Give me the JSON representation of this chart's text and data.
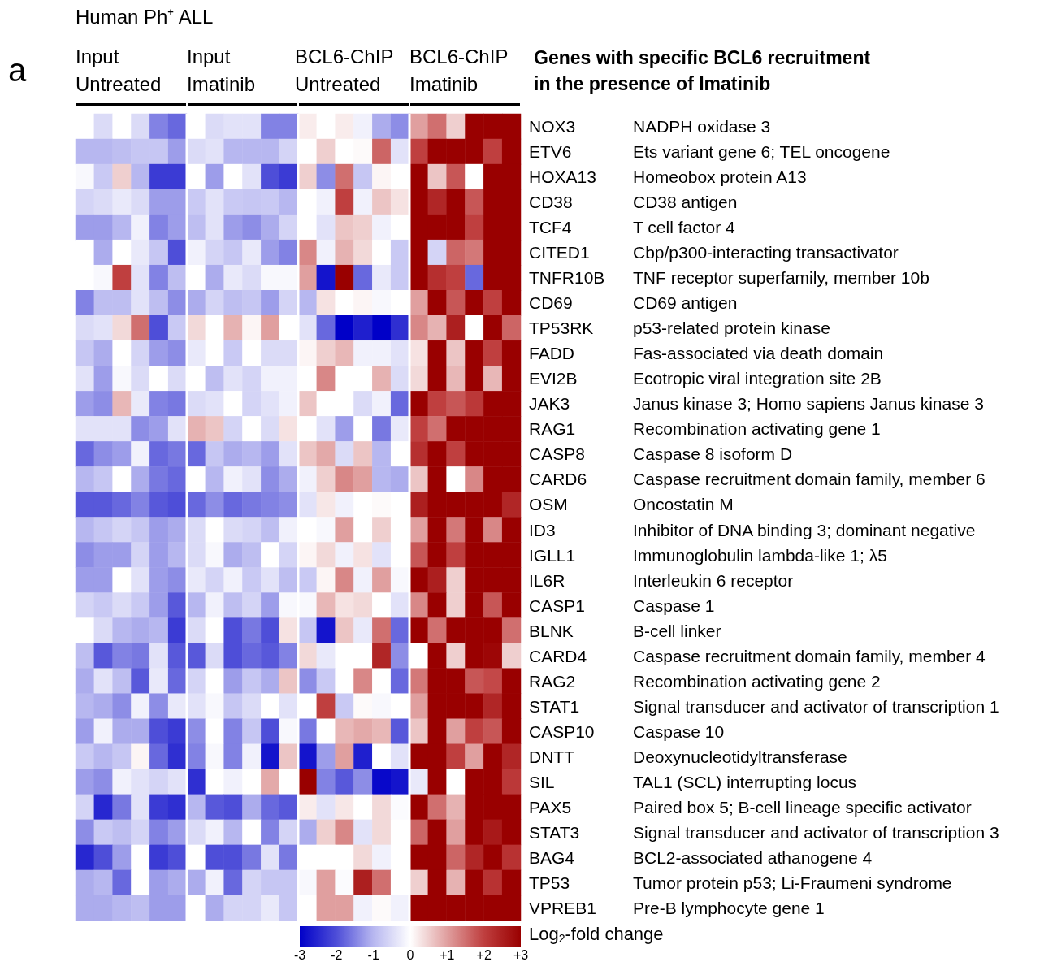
{
  "chart_data": {
    "type": "heatmap",
    "ylabel": "Genes with specific BCL6 recruitment in the presence of Imatinib",
    "annotations": [
      "a",
      "Human Ph⁺ ALL",
      "Input Untreated",
      "Input Imatinib",
      "BCL6-ChIP Untreated",
      "BCL6-ChIP Imatinib"
    ],
    "categories": [
      null,
      null,
      null,
      null,
      null,
      null,
      null,
      null,
      null,
      null,
      null,
      null,
      null,
      null,
      null,
      null,
      null,
      null,
      null,
      null,
      null,
      null,
      null,
      null
    ],
    "y_categories": [
      "NOX3",
      "ETV6",
      "HOXA13",
      "CD38",
      "TCF4",
      "CITED1",
      "TNFR10B",
      "CD69",
      "TP53RK",
      "FADD",
      "EVI2B",
      "JAK3",
      "RAG1",
      "CASP8",
      "CARD6",
      "OSM",
      "ID3",
      "IGLL1",
      "IL6R",
      "CASP1",
      "BLNK",
      "CARD4",
      "RAG2",
      "STAT1",
      "CASP10",
      "DNTT",
      "SIL",
      "PAX5",
      "STAT3",
      "BAG4",
      "TP53",
      "VPREB1"
    ],
    "y2_categories": [
      "NADPH oxidase 3",
      "Ets variant gene 6; TEL oncogene",
      "Homeobox protein A13",
      "CD38 antigen",
      "T cell factor 4",
      "Cbp/p300-interacting transactivator",
      "TNF receptor superfamily, member 10b",
      "CD69 antigen",
      "p53-related protein kinase",
      "Fas-associated via death domain",
      "Ecotropic viral integration site 2B",
      "Janus kinase 3; Homo sapiens Janus kinase 3",
      "Recombination activating gene 1",
      "Caspase 8 isoform D",
      "Caspase recruitment domain family, member 6",
      "Oncostatin M",
      "Inhibitor of DNA binding 3; dominant negative",
      "Immunoglobulin lambda-like 1; λ5",
      "Interleukin 6 receptor",
      "Caspase 1",
      "B-cell linker",
      "Caspase recruitment domain family, member 4",
      "Recombination activating gene 2",
      "Signal transducer and activator of transcription 1",
      "Caspase 10",
      "Deoxynucleotidyltransferase",
      "TAL1 (SCL) interrupting locus",
      "Paired box 5; B-cell lineage specific activator",
      "Signal transducer and activator of transcription 3",
      "BCL2-associated athanogene 4",
      "Tumor protein p53; Li-Fraumeni syndrome",
      "Pre-B lymphocyte gene 1"
    ],
    "clim": [
      -3,
      3
    ],
    "clabel": "Log$_{2}$-fold change",
    "cticks": [
      -3,
      -2,
      -1,
      0,
      {
        "value": 1,
        "label": "+1"
      },
      {
        "value": 2,
        "label": "+2"
      },
      {
        "value": 3,
        "label": "+3"
      }
    ],
    "cells": [
      [
        0,
        -0.5,
        0,
        -0.5,
        -1.5,
        -1.75,
        0,
        -0.5,
        -0.4,
        -0.4,
        -1.5,
        -1.5,
        0.2,
        0,
        0.2,
        -0.2,
        -1.1,
        -1.4,
        1,
        1.5,
        0.5,
        3,
        3,
        3
      ],
      [
        -1,
        -1,
        -0.9,
        -0.8,
        -0.8,
        -1.25,
        -0.5,
        -0.4,
        -1,
        -1,
        -1,
        -0.6,
        0,
        0.5,
        0,
        0.05,
        1.6,
        -0.4,
        2,
        3,
        3,
        3,
        2,
        3
      ],
      [
        -0.1,
        -0.75,
        0.5,
        -1,
        -2.25,
        -2.25,
        0,
        -1.25,
        0,
        -0.4,
        -2,
        -2.25,
        0.5,
        -1.4,
        1.5,
        -0.8,
        0.1,
        0,
        3,
        0.6,
        1.75,
        0,
        3,
        3
      ],
      [
        -0.6,
        -0.5,
        -0.3,
        -0.5,
        -1.25,
        -1.25,
        -0.75,
        -0.4,
        -0.75,
        -0.8,
        -0.75,
        -1,
        0,
        -0.2,
        2,
        -0.2,
        0.6,
        0.3,
        3,
        2.4,
        3,
        1.75,
        3,
        3
      ],
      [
        -1.25,
        -1.25,
        -1,
        -0.2,
        -1.5,
        -1.25,
        -0.9,
        -0.4,
        -1.25,
        -1.4,
        -1.1,
        -0.6,
        0,
        -0.4,
        0.6,
        0.5,
        -0.2,
        0,
        3,
        3,
        3,
        2,
        3,
        3
      ],
      [
        0,
        -1.1,
        0,
        -0.3,
        -0.8,
        -2,
        -0.2,
        -0.6,
        -0.8,
        -0.3,
        -1.25,
        -1.5,
        1.25,
        -0.2,
        0.8,
        0.4,
        0,
        -0.75,
        3,
        -0.6,
        1.6,
        1.4,
        3,
        3
      ],
      [
        0,
        -0.1,
        2,
        -0.4,
        -1.5,
        -0.9,
        0,
        -1.1,
        -0.3,
        -0.5,
        -0.1,
        -0.1,
        1,
        -2.75,
        3,
        -1.75,
        -0.3,
        -0.75,
        3,
        2.25,
        2,
        -1.75,
        3,
        3
      ],
      [
        -1.5,
        -0.9,
        -0.9,
        -0.4,
        -0.9,
        -1.4,
        -1.1,
        -0.6,
        -0.9,
        -0.8,
        -1.25,
        -0.6,
        -1,
        0.3,
        0,
        0.1,
        -0.1,
        0,
        1,
        3,
        1.75,
        3,
        2,
        3
      ],
      [
        -0.5,
        -0.4,
        0.4,
        1.5,
        -2,
        -0.75,
        0.4,
        0,
        0.8,
        0.1,
        1,
        0,
        -0.4,
        -1.75,
        -3,
        -2.6,
        -3,
        -2.4,
        1.25,
        0.8,
        2.5,
        0,
        3,
        1.6
      ],
      [
        -0.8,
        -1.1,
        0,
        -0.6,
        -1.25,
        -1.4,
        -0.3,
        0,
        -0.75,
        0,
        -0.5,
        -0.5,
        0.1,
        0.5,
        0.75,
        -0.2,
        -0.2,
        -0.4,
        0.3,
        3,
        0.6,
        3,
        2,
        3
      ],
      [
        -0.4,
        -1.25,
        -0.1,
        -0.5,
        0,
        -0.5,
        0,
        -0.9,
        -0.4,
        -0.6,
        -0.2,
        -0.2,
        0,
        1.25,
        0,
        0,
        0.8,
        -0.5,
        0.4,
        3,
        0.75,
        3,
        0.75,
        3
      ],
      [
        -1.25,
        -1.4,
        0.75,
        -0.3,
        -1.5,
        -1.6,
        -0.5,
        -0.4,
        0,
        -0.6,
        -0.4,
        -0.2,
        0.6,
        0,
        0,
        -0.5,
        -0.2,
        -1.75,
        3,
        2,
        1.75,
        2.1,
        3,
        3
      ],
      [
        -0.4,
        -0.4,
        -0.4,
        -1.4,
        -1.25,
        -0.4,
        0.8,
        0.6,
        -0.6,
        0,
        -0.5,
        0.3,
        0,
        -0.4,
        -1.25,
        0,
        -1.6,
        -0.3,
        2,
        1.5,
        3,
        3,
        3,
        3
      ],
      [
        -1.75,
        -1.4,
        -1.25,
        -0.2,
        -1.75,
        -1.6,
        -1.75,
        -0.8,
        -1.1,
        -1,
        -1.25,
        -0.4,
        0.6,
        0.9,
        -0.5,
        0.6,
        -1,
        0,
        2.25,
        3,
        2,
        3,
        3,
        3
      ],
      [
        -1,
        -0.8,
        0,
        -1.1,
        -1.6,
        -1.75,
        0,
        -1,
        -0.2,
        -0.4,
        -1.4,
        -1.1,
        -0.2,
        0.5,
        1.25,
        1,
        -1,
        -1.1,
        0.6,
        3,
        0,
        1.25,
        3,
        3
      ],
      [
        -1.9,
        -1.9,
        -1.75,
        -1.5,
        -1.9,
        -2,
        -1.75,
        -1.4,
        -1.75,
        -1.6,
        -1.5,
        -1.4,
        -0.4,
        0.25,
        -0.2,
        0,
        0.05,
        0,
        2.5,
        3,
        3,
        3,
        3,
        2.4
      ],
      [
        -1,
        -0.8,
        -0.6,
        -0.8,
        -1.25,
        -1.1,
        -0.5,
        0,
        -0.5,
        -0.6,
        -0.9,
        -0.2,
        0,
        -0.1,
        1,
        0,
        0.5,
        0,
        1,
        3,
        1.4,
        3,
        1.25,
        3
      ],
      [
        -1.4,
        -1.25,
        -1.25,
        -0.6,
        -1.25,
        -1,
        -0.5,
        -0.1,
        -1.1,
        -0.9,
        0,
        -0.6,
        0.1,
        0.4,
        -0.2,
        0.3,
        -0.4,
        0,
        1.75,
        3,
        2,
        3,
        3,
        3
      ],
      [
        -1.25,
        -1.25,
        0,
        -0.4,
        -1.25,
        -1.4,
        -0.3,
        -0.6,
        -0.2,
        -0.75,
        -0.4,
        -0.9,
        -0.75,
        0.1,
        1.25,
        -0.2,
        1,
        -0.1,
        3,
        2.5,
        0.5,
        3,
        3,
        3
      ],
      [
        -0.6,
        -0.75,
        -0.5,
        -0.75,
        -1.25,
        -1.9,
        -1,
        -0.2,
        -0.9,
        -0.6,
        -1.25,
        -0.1,
        -0.1,
        0.75,
        0.3,
        0.4,
        0,
        -0.4,
        1.25,
        3,
        0.5,
        3,
        1.75,
        3
      ],
      [
        0,
        -0.5,
        -1,
        -1.1,
        -1,
        -2.25,
        -0.5,
        0,
        -2,
        -1.6,
        -2,
        0.3,
        -0.8,
        -2.75,
        0.6,
        -0.3,
        1.5,
        -1.75,
        3,
        1.5,
        3,
        3,
        3,
        1.5
      ],
      [
        -0.9,
        -1.9,
        -1.5,
        -1.6,
        -0.4,
        -1.9,
        -1.9,
        -0.5,
        -2,
        -1.75,
        -1.9,
        -1.5,
        0.4,
        -0.3,
        0,
        0,
        2.4,
        -1.4,
        0,
        3,
        0.5,
        3,
        2.9,
        0.5
      ],
      [
        -1.1,
        -0.4,
        -0.9,
        -1.9,
        -0.3,
        -1.75,
        -0.6,
        0,
        -1.25,
        -0.8,
        -1.1,
        0.6,
        -1.4,
        -0.75,
        0,
        1.25,
        0,
        -1.75,
        1.4,
        3,
        3,
        1.75,
        1.9,
        3
      ],
      [
        -1,
        -1.1,
        -1.4,
        -0.2,
        -1.4,
        -0.3,
        -0.4,
        -0.1,
        -0.8,
        -0.5,
        0,
        -0.4,
        0,
        2,
        -0.75,
        0.05,
        -0.1,
        0,
        1,
        3,
        3,
        3,
        2.4,
        3
      ],
      [
        -1.25,
        -0.2,
        -1.1,
        -1.1,
        -2,
        -2.25,
        -1.4,
        0,
        -1.5,
        -0.8,
        -2,
        -0.1,
        -1.6,
        0,
        0.75,
        0.9,
        0.75,
        -1.9,
        0.6,
        3,
        1,
        2,
        1.75,
        3
      ],
      [
        -0.75,
        -1,
        -0.8,
        0.1,
        -1.75,
        -2.4,
        -1.5,
        -0.1,
        -1.5,
        -0.2,
        -2.75,
        0.6,
        -2.75,
        -1.25,
        1,
        -2.6,
        0,
        -0.4,
        3,
        3,
        2,
        1,
        3,
        2.4
      ],
      [
        -1.25,
        -1.4,
        -0.2,
        -0.4,
        -0.6,
        -0.4,
        -2.4,
        0,
        -0.2,
        0,
        0.9,
        0,
        3,
        -1.5,
        -1.9,
        -1.4,
        -2.9,
        -2.75,
        -0.3,
        3,
        0,
        3,
        3,
        2.1
      ],
      [
        -0.6,
        -2.5,
        -1.6,
        -0.4,
        -2.25,
        -2.4,
        -1,
        -1.9,
        -2,
        -1.1,
        -1.75,
        -1.9,
        0.2,
        -0.4,
        0.25,
        0,
        0.4,
        -0.05,
        3,
        1.5,
        0.8,
        3,
        3,
        3
      ],
      [
        -1.4,
        -0.75,
        -0.9,
        -0.6,
        -1.5,
        -1.25,
        -0.5,
        -0.2,
        -1,
        0,
        -1.5,
        -0.6,
        -1.1,
        0.5,
        1.25,
        -0.4,
        0.4,
        0,
        1.6,
        3,
        1,
        3,
        2.6,
        3
      ],
      [
        -2.5,
        -2,
        -1.25,
        0,
        -2.25,
        -2,
        0,
        -2,
        -2,
        -1.6,
        -0.4,
        -1.6,
        0,
        0,
        0,
        0.4,
        -0.2,
        0,
        3,
        3,
        1.6,
        2.4,
        3,
        2.2
      ],
      [
        -1.1,
        -1,
        -1.75,
        0,
        -1.25,
        -1.1,
        -1.1,
        -0.2,
        -1.75,
        -0.6,
        -0.8,
        -0.8,
        -0.1,
        1,
        -0.05,
        2.5,
        1.5,
        0,
        0.5,
        3,
        0.8,
        3,
        2.2,
        3
      ],
      [
        -1.1,
        -1.1,
        -1,
        -0.9,
        -1.25,
        -1.25,
        0,
        -1.1,
        -0.6,
        -0.6,
        -0.3,
        -0.8,
        0,
        1,
        1,
        -0.2,
        0.05,
        -0.2,
        3,
        3,
        3,
        3,
        3,
        3
      ]
    ]
  }
}
